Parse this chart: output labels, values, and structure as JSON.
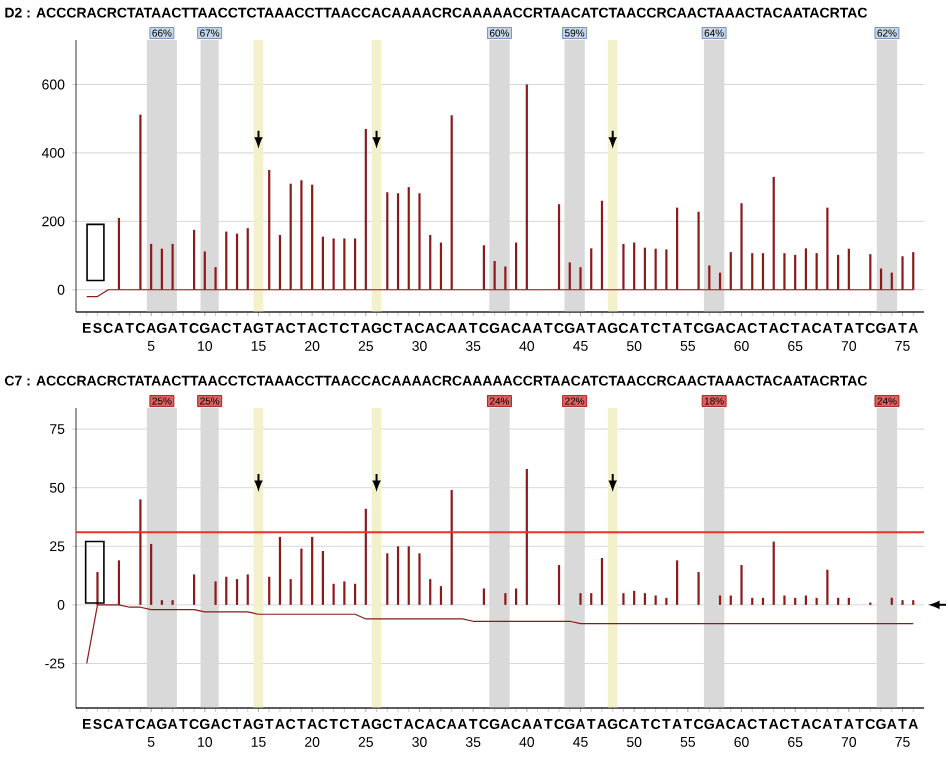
{
  "chart_data": [
    {
      "type": "bar",
      "title": "D2 : ACCCRACRCTATAACTTAACCTCTAAACCTTAACCACAAAACRCAAAAACCRTAACATCTAACCRCAACTAAACTACAATACRTAC",
      "categories": [
        "E",
        "S",
        "C",
        "A",
        "T",
        "C",
        "A",
        "G",
        "A",
        "T",
        "C",
        "G",
        "A",
        "C",
        "T",
        "A",
        "G",
        "T",
        "A",
        "C",
        "T",
        "A",
        "C",
        "T",
        "C",
        "T",
        "A",
        "G",
        "C",
        "T",
        "A",
        "C",
        "A",
        "C",
        "A",
        "A",
        "T",
        "C",
        "G",
        "A",
        "C",
        "A",
        "A",
        "T",
        "C",
        "G",
        "A",
        "T",
        "A",
        "G",
        "C",
        "A",
        "T",
        "C",
        "T",
        "A",
        "T",
        "C",
        "G",
        "A",
        "C",
        "A",
        "C",
        "T",
        "A",
        "C",
        "T",
        "A",
        "C",
        "A",
        "T",
        "A",
        "T",
        "C",
        "G",
        "A",
        "T",
        "A"
      ],
      "x2lim": [
        -2,
        77
      ],
      "x2ticks": [
        5,
        10,
        15,
        20,
        25,
        30,
        35,
        40,
        45,
        50,
        55,
        60,
        65,
        70,
        75
      ],
      "series": [
        {
          "type": "line",
          "color": "#8b1a1a",
          "values": [
            -20,
            -20,
            0,
            0,
            0,
            0,
            0,
            0,
            0,
            0,
            0,
            0,
            0,
            0,
            0,
            0,
            0,
            0,
            0,
            0,
            0,
            0,
            0,
            0,
            0,
            0,
            0,
            0,
            0,
            0,
            0,
            0,
            0,
            0,
            0,
            0,
            0,
            0,
            0,
            0,
            0,
            0,
            0,
            0,
            0,
            0,
            0,
            0,
            0,
            0,
            0,
            0,
            0,
            0,
            0,
            0,
            0,
            0,
            0,
            0,
            0,
            0,
            0,
            0,
            0,
            0,
            0,
            0,
            0,
            0,
            0,
            0,
            0,
            0,
            0,
            0,
            0,
            0
          ]
        },
        {
          "type": "bar",
          "color": "#8b1a1a",
          "values": [
            0,
            0,
            0,
            210,
            0,
            512,
            134,
            120,
            134,
            0,
            175,
            112,
            66,
            170,
            164,
            180,
            0,
            350,
            160,
            310,
            320,
            307,
            155,
            150,
            150,
            150,
            470,
            0,
            285,
            282,
            300,
            282,
            160,
            138,
            510,
            0,
            0,
            130,
            84,
            68,
            138,
            600,
            0,
            0,
            250,
            80,
            66,
            121,
            260,
            0,
            134,
            138,
            123,
            120,
            118,
            240,
            0,
            228,
            71,
            50,
            110,
            253,
            107,
            107,
            330,
            107,
            102,
            121,
            107,
            240,
            102,
            120,
            0,
            104,
            62,
            50,
            98,
            110
          ]
        }
      ],
      "ylim": [
        -65,
        730
      ],
      "yticks": [
        0,
        200,
        400,
        600
      ],
      "grid": "y",
      "bands": [
        {
          "axis": "x2",
          "from": 4.6,
          "to": 7.4,
          "label": "66%",
          "color": "#d9d9d9"
        },
        {
          "axis": "x2",
          "from": 9.6,
          "to": 11.3,
          "label": "67%",
          "color": "#d9d9d9"
        },
        {
          "axis": "x2",
          "from": 14.55,
          "to": 15.45,
          "color": "#f3f1cc"
        },
        {
          "axis": "x2",
          "from": 25.55,
          "to": 26.45,
          "color": "#f3f1cc"
        },
        {
          "axis": "x2",
          "from": 36.5,
          "to": 38.4,
          "label": "60%",
          "color": "#d9d9d9"
        },
        {
          "axis": "x2",
          "from": 43.5,
          "to": 45.4,
          "label": "59%",
          "color": "#d9d9d9"
        },
        {
          "axis": "x2",
          "from": 47.55,
          "to": 48.45,
          "color": "#f3f1cc"
        },
        {
          "axis": "x2",
          "from": 56.5,
          "to": 58.4,
          "label": "64%",
          "color": "#d9d9d9"
        },
        {
          "axis": "x2",
          "from": 72.6,
          "to": 74.5,
          "label": "62%",
          "color": "#d9d9d9"
        }
      ]
    },
    {
      "type": "bar",
      "title": "C7 : ACCCRACRCTATAACTTAACCTCTAAACCTTAACCACAAAACRCAAAAACCRTAACATCTAACCRCAACTAAACTACAATACRTAC",
      "categories": [
        "E",
        "S",
        "C",
        "A",
        "T",
        "C",
        "A",
        "G",
        "A",
        "T",
        "C",
        "G",
        "A",
        "C",
        "T",
        "A",
        "G",
        "T",
        "A",
        "C",
        "T",
        "A",
        "C",
        "T",
        "C",
        "T",
        "A",
        "G",
        "C",
        "T",
        "A",
        "C",
        "A",
        "C",
        "A",
        "A",
        "T",
        "C",
        "G",
        "A",
        "C",
        "A",
        "A",
        "T",
        "C",
        "G",
        "A",
        "T",
        "A",
        "G",
        "C",
        "A",
        "T",
        "C",
        "T",
        "A",
        "T",
        "C",
        "G",
        "A",
        "C",
        "A",
        "C",
        "T",
        "A",
        "C",
        "T",
        "A",
        "C",
        "A",
        "T",
        "A",
        "T",
        "C",
        "G",
        "A",
        "T",
        "A"
      ],
      "x2lim": [
        -2,
        77
      ],
      "x2ticks": [
        5,
        10,
        15,
        20,
        25,
        30,
        35,
        40,
        45,
        50,
        55,
        60,
        65,
        70,
        75
      ],
      "series": [
        {
          "type": "line",
          "color": "#8b1a1a",
          "values": [
            -25,
            0,
            0,
            0,
            -1,
            -1,
            -2,
            -2,
            -2,
            -2,
            -2,
            -3,
            -3,
            -3,
            -3,
            -3,
            -4,
            -4,
            -4,
            -4,
            -4,
            -4,
            -4,
            -4,
            -4,
            -4,
            -6,
            -6,
            -6,
            -6,
            -6,
            -6,
            -6,
            -6,
            -6,
            -6,
            -7,
            -7,
            -7,
            -7,
            -7,
            -7,
            -7,
            -7,
            -7,
            -7,
            -8,
            -8,
            -8,
            -8,
            -8,
            -8,
            -8,
            -8,
            -8,
            -8,
            -8,
            -8,
            -8,
            -8,
            -8,
            -8,
            -8,
            -8,
            -8,
            -8,
            -8,
            -8,
            -8,
            -8,
            -8,
            -8,
            -8,
            -8,
            -8,
            -8,
            -8,
            -8
          ]
        },
        {
          "type": "bar",
          "color": "#8b1a1a",
          "values": [
            0,
            14,
            0,
            19,
            0,
            45,
            26,
            2,
            2,
            0,
            13,
            0,
            10,
            12,
            11,
            13,
            0,
            12,
            29,
            11,
            24,
            29,
            23,
            9,
            10,
            9,
            41,
            0,
            22,
            25,
            25,
            22,
            11,
            8,
            49,
            0,
            0,
            7,
            0,
            5,
            7,
            58,
            0,
            0,
            17,
            0,
            5,
            5,
            20,
            0,
            5,
            6,
            5,
            4,
            3,
            19,
            0,
            14,
            0,
            4,
            4,
            17,
            3,
            3,
            27,
            4,
            3,
            4,
            3,
            15,
            3,
            3,
            0,
            1,
            0,
            3,
            2,
            2
          ]
        }
      ],
      "ylim": [
        -44,
        84
      ],
      "yticks": [
        -25,
        0,
        25,
        50,
        75
      ],
      "grid": "y",
      "ref_lines": [
        {
          "axis": "y",
          "value": 31,
          "color": "#e8322a"
        }
      ],
      "bands": [
        {
          "axis": "x2",
          "from": 4.6,
          "to": 7.4,
          "label": "25%",
          "color": "#d9d9d9"
        },
        {
          "axis": "x2",
          "from": 9.6,
          "to": 11.3,
          "label": "25%",
          "color": "#d9d9d9"
        },
        {
          "axis": "x2",
          "from": 14.55,
          "to": 15.45,
          "color": "#f3f1cc"
        },
        {
          "axis": "x2",
          "from": 25.55,
          "to": 26.45,
          "color": "#f3f1cc"
        },
        {
          "axis": "x2",
          "from": 36.5,
          "to": 38.4,
          "label": "24%",
          "color": "#d9d9d9"
        },
        {
          "axis": "x2",
          "from": 43.5,
          "to": 45.4,
          "label": "22%",
          "color": "#d9d9d9"
        },
        {
          "axis": "x2",
          "from": 47.55,
          "to": 48.45,
          "color": "#f3f1cc"
        },
        {
          "axis": "x2",
          "from": 56.5,
          "to": 58.4,
          "label": "18%",
          "color": "#d9d9d9"
        },
        {
          "axis": "x2",
          "from": 72.6,
          "to": 74.5,
          "label": "24%",
          "color": "#d9d9d9"
        }
      ]
    }
  ]
}
